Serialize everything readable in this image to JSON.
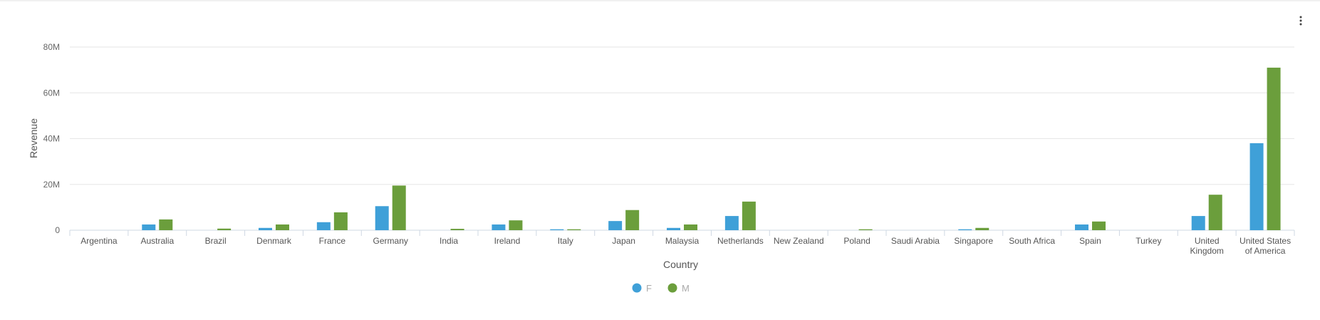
{
  "menu": {
    "icon": "more-vertical-icon"
  },
  "colors": {
    "F": "#3fa0d8",
    "M": "#6b9e3c",
    "grid": "#e6e6e6",
    "axis": "#cfd8e3"
  },
  "chart_data": {
    "type": "bar",
    "title": "",
    "xlabel": "Country",
    "ylabel": "Revenue",
    "ylim": [
      0,
      80000000
    ],
    "yticks": [
      {
        "value": 0,
        "label": "0"
      },
      {
        "value": 20000000,
        "label": "20M"
      },
      {
        "value": 40000000,
        "label": "40M"
      },
      {
        "value": 60000000,
        "label": "60M"
      },
      {
        "value": 80000000,
        "label": "80M"
      }
    ],
    "grid": true,
    "legend": "bottom-center",
    "categories": [
      [
        "Argentina"
      ],
      [
        "Australia"
      ],
      [
        "Brazil"
      ],
      [
        "Denmark"
      ],
      [
        "France"
      ],
      [
        "Germany"
      ],
      [
        "India"
      ],
      [
        "Ireland"
      ],
      [
        "Italy"
      ],
      [
        "Japan"
      ],
      [
        "Malaysia"
      ],
      [
        "Netherlands"
      ],
      [
        "New Zealand"
      ],
      [
        "Poland"
      ],
      [
        "Saudi Arabia"
      ],
      [
        "Singapore"
      ],
      [
        "South Africa"
      ],
      [
        "Spain"
      ],
      [
        "Turkey"
      ],
      [
        "United",
        "Kingdom"
      ],
      [
        "United States",
        "of America"
      ]
    ],
    "series": [
      {
        "name": "F",
        "values": [
          0,
          2500000,
          0,
          1000000,
          3500000,
          10500000,
          0,
          2500000,
          400000,
          4000000,
          1000000,
          6200000,
          0,
          0,
          0,
          400000,
          0,
          2500000,
          0,
          6200000,
          38000000
        ]
      },
      {
        "name": "M",
        "values": [
          0,
          4700000,
          700000,
          2500000,
          7800000,
          19500000,
          600000,
          4300000,
          400000,
          8800000,
          2500000,
          12500000,
          0,
          400000,
          0,
          1000000,
          0,
          3800000,
          0,
          15500000,
          71000000
        ]
      }
    ]
  }
}
